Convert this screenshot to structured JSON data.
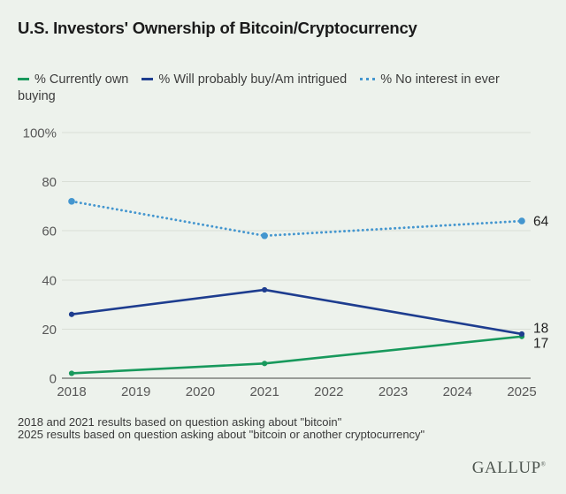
{
  "title": "U.S. Investors' Ownership of Bitcoin/Cryptocurrency",
  "colors": {
    "background": "#edf2ec",
    "grid": "#d9ded6",
    "axis": "#454545",
    "tick_text": "#585858",
    "value_label_text": "#1f1f1f",
    "green": "#18995c",
    "navy": "#1e3d8f",
    "light_blue": "#4496cf"
  },
  "chart_data": {
    "type": "line",
    "title": "U.S. Investors' Ownership of Bitcoin/Cryptocurrency",
    "xlabel": "",
    "ylabel": "",
    "x_ticks": [
      2018,
      2019,
      2020,
      2021,
      2022,
      2023,
      2024,
      2025
    ],
    "ylim": [
      0,
      100
    ],
    "y_ticks": [
      0,
      20,
      40,
      60,
      80,
      100
    ],
    "y_tick_labels": [
      "0",
      "20",
      "40",
      "60",
      "80",
      "100%"
    ],
    "grid": "horizontal",
    "legend_position": "top",
    "series": [
      {
        "name": "% Currently own",
        "color": "#18995c",
        "style": "solid",
        "points": [
          {
            "x": 2018,
            "y": 2
          },
          {
            "x": 2021,
            "y": 6
          },
          {
            "x": 2025,
            "y": 17
          }
        ],
        "end_label": "17"
      },
      {
        "name": "% Will probably buy/Am intrigued",
        "color": "#1e3d8f",
        "style": "solid",
        "points": [
          {
            "x": 2018,
            "y": 26
          },
          {
            "x": 2021,
            "y": 36
          },
          {
            "x": 2025,
            "y": 18
          }
        ],
        "end_label": "18"
      },
      {
        "name": "% No interest in ever buying",
        "color": "#4496cf",
        "style": "dotted",
        "points": [
          {
            "x": 2018,
            "y": 72
          },
          {
            "x": 2021,
            "y": 58
          },
          {
            "x": 2025,
            "y": 64
          }
        ],
        "end_label": "64"
      }
    ]
  },
  "footnotes": [
    "2018 and 2021 results based on question asking about \"bitcoin\"",
    "2025 results based on question asking about \"bitcoin or another cryptocurrency\""
  ],
  "logo": "GALLUP",
  "logo_mark": "®"
}
